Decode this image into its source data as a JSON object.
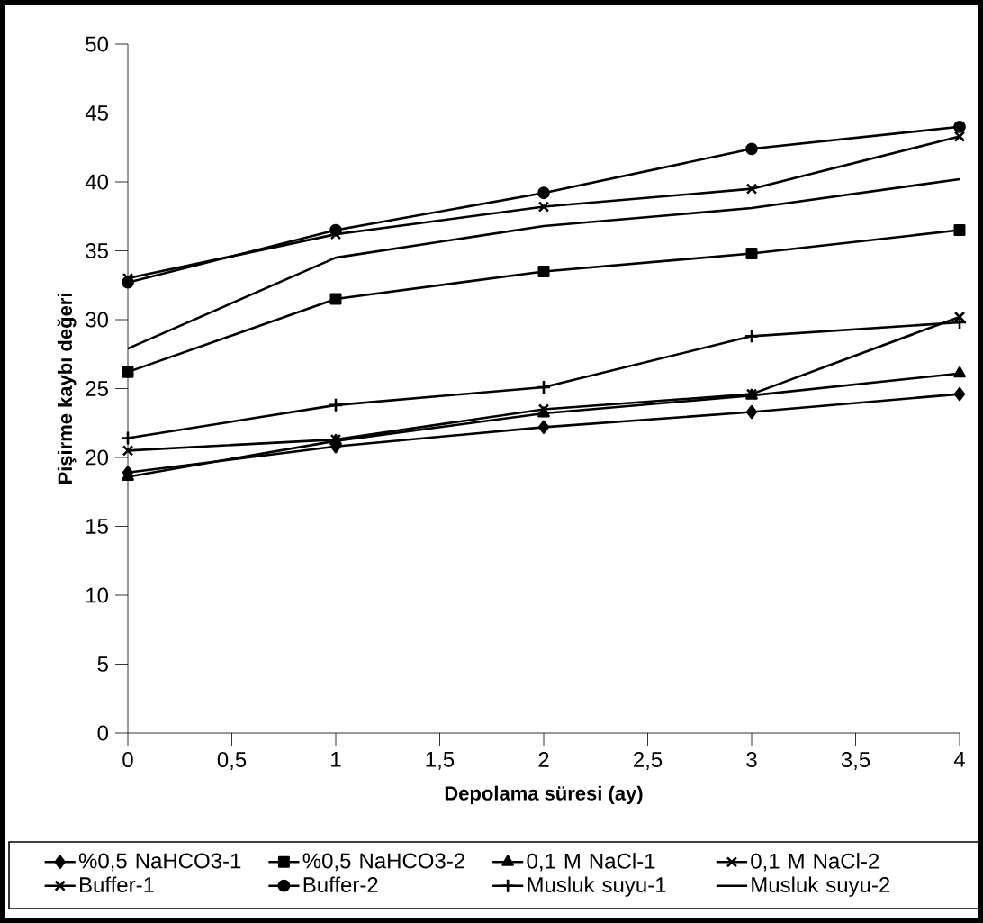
{
  "chart_data": {
    "type": "line",
    "xlabel": "Depolama süresi (ay)",
    "ylabel": "Pişirme kaybı değeri",
    "x": [
      0,
      1,
      2,
      3,
      4
    ],
    "xlim": [
      0,
      4
    ],
    "xticks": [
      0,
      {
        "value": 0.5,
        "label": "0,5"
      },
      1,
      {
        "value": 1.5,
        "label": "1,5"
      },
      2,
      {
        "value": 2.5,
        "label": "2,5"
      },
      3,
      {
        "value": 3.5,
        "label": "3,5"
      },
      4
    ],
    "ylim": [
      0,
      50
    ],
    "yticks": [
      0,
      5,
      10,
      15,
      20,
      25,
      30,
      35,
      40,
      45,
      50
    ],
    "grid": false,
    "legend": "bottom",
    "line_style": "solid",
    "series": [
      {
        "name": "%0,5 NaHCO3-1",
        "color": "#000000",
        "marker": "diamond",
        "values": [
          18.9,
          20.8,
          22.2,
          23.3,
          24.6
        ]
      },
      {
        "name": "%0,5 NaHCO3-2",
        "color": "#000000",
        "marker": "square",
        "values": [
          26.2,
          31.5,
          33.5,
          34.8,
          36.5
        ]
      },
      {
        "name": "0,1 M NaCl-1",
        "color": "#000000",
        "marker": "triangle",
        "values": [
          18.6,
          21.2,
          23.2,
          24.5,
          26.1
        ]
      },
      {
        "name": "0,1 M NaCl-2",
        "color": "#000000",
        "marker": "cross",
        "values": [
          20.5,
          21.3,
          23.5,
          24.6,
          30.2
        ]
      },
      {
        "name": "Buffer-1",
        "color": "#000000",
        "marker": "cross",
        "values": [
          33.0,
          36.2,
          38.2,
          39.5,
          43.3
        ]
      },
      {
        "name": "Buffer-2",
        "color": "#000000",
        "marker": "circle",
        "values": [
          32.7,
          36.5,
          39.2,
          42.4,
          44.0
        ]
      },
      {
        "name": "Musluk suyu-1",
        "color": "#000000",
        "marker": "plus",
        "values": [
          21.4,
          23.8,
          25.1,
          28.8,
          29.8
        ]
      },
      {
        "name": "Musluk suyu-2",
        "color": "#000000",
        "marker": "none",
        "values": [
          27.9,
          34.5,
          36.8,
          38.1,
          40.2
        ]
      }
    ]
  }
}
